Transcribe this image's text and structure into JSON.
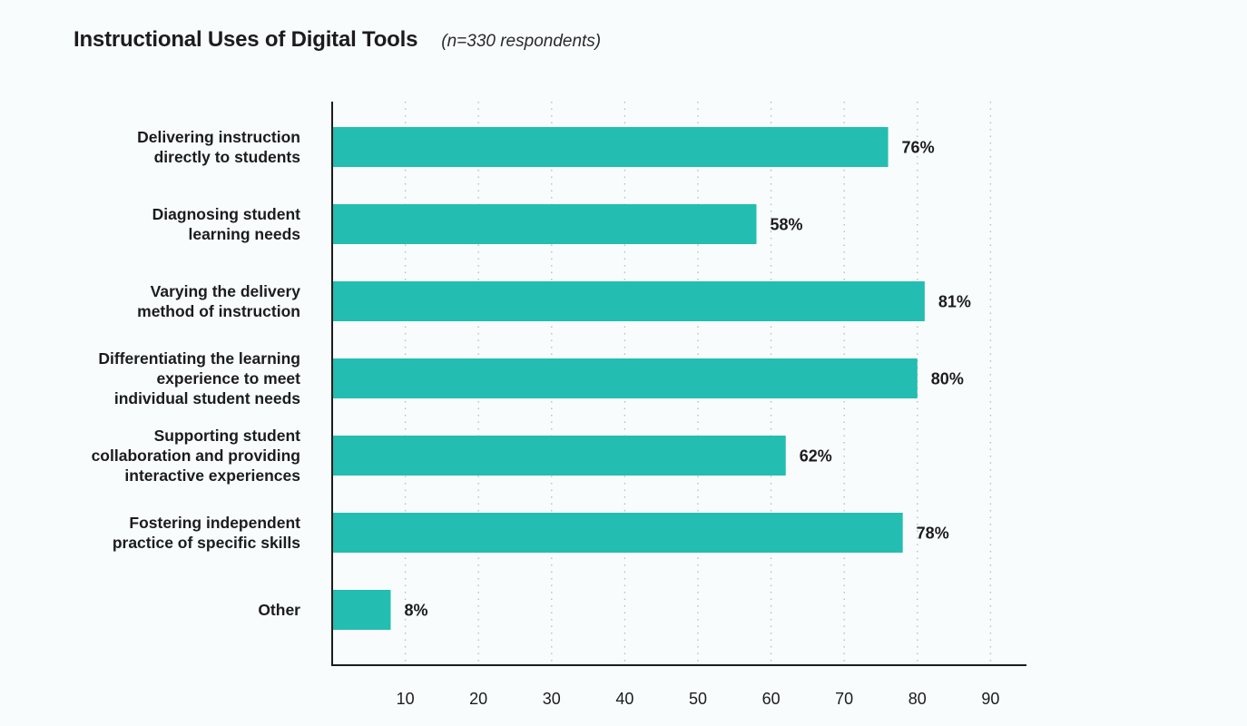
{
  "title": "Instructional Uses of Digital Tools",
  "subtitle": "(n=330 respondents)",
  "colors": {
    "bar": "#23bdb1",
    "axis": "#1c1c1c",
    "grid": "#b8bfc2"
  },
  "chart_data": {
    "type": "bar",
    "orientation": "horizontal",
    "title": "Instructional Uses of Digital Tools",
    "subtitle": "(n=330 respondents)",
    "categories": [
      [
        "Delivering instruction",
        "directly to students"
      ],
      [
        "Diagnosing student",
        "learning needs"
      ],
      [
        "Varying the delivery",
        "method of instruction"
      ],
      [
        "Differentiating the learning",
        "experience to meet",
        "individual student needs"
      ],
      [
        "Supporting student",
        "collaboration and providing",
        "interactive experiences"
      ],
      [
        "Fostering independent",
        "practice of specific skills"
      ],
      [
        "Other"
      ]
    ],
    "values": [
      76,
      58,
      81,
      80,
      62,
      78,
      8
    ],
    "value_labels": [
      "76%",
      "58%",
      "81%",
      "80%",
      "62%",
      "78%",
      "8%"
    ],
    "xticks": [
      10,
      20,
      30,
      40,
      50,
      60,
      70,
      80,
      90
    ],
    "xlim": [
      0,
      95
    ],
    "grid": "vertical dotted",
    "legend": "none"
  }
}
